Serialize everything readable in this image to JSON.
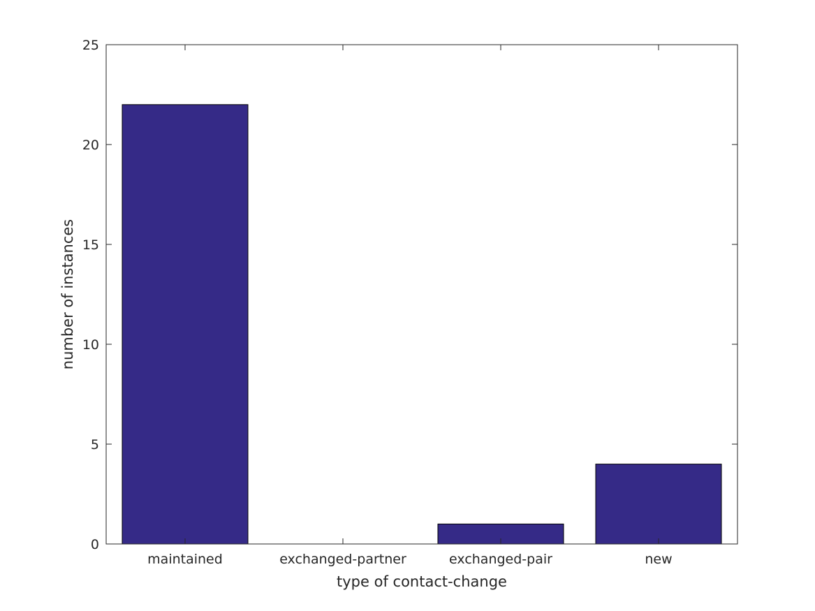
{
  "chart_data": {
    "type": "bar",
    "categories": [
      "maintained",
      "exchanged-partner",
      "exchanged-pair",
      "new"
    ],
    "values": [
      22,
      0,
      1,
      4
    ],
    "xlabel": "type of contact-change",
    "ylabel": "number of instances",
    "ylim": [
      0,
      25
    ],
    "yticks": [
      0,
      5,
      10,
      15,
      20,
      25
    ],
    "grid": false,
    "bar_color": "#352a87",
    "edge_color": "#000000",
    "axis_color": "#262626"
  }
}
